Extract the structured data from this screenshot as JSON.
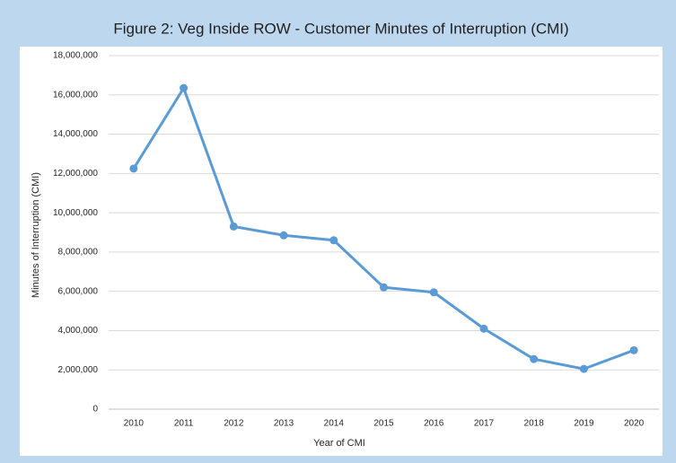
{
  "chart_data": {
    "type": "line",
    "title": "Figure 2: Veg Inside ROW - Customer Minutes of Interruption (CMI)",
    "x_label": "Year of CMI",
    "y_label": "Minutes of Interruption (CMI)",
    "categories": [
      "2010",
      "2011",
      "2012",
      "2013",
      "2014",
      "2015",
      "2016",
      "2017",
      "2018",
      "2019",
      "2020"
    ],
    "series": [
      {
        "name": "CMI",
        "color": "#5b9bd5",
        "values": [
          12250000,
          16350000,
          9300000,
          8850000,
          8600000,
          6200000,
          5950000,
          4100000,
          2550000,
          2050000,
          3000000
        ]
      }
    ],
    "ylim": [
      0,
      18000000
    ],
    "yticks": [
      0,
      {
        "value": 2000000,
        "label": "2,000,000"
      },
      {
        "value": 4000000,
        "label": "4,000,000"
      },
      {
        "value": 6000000,
        "label": "6,000,000"
      },
      {
        "value": 8000000,
        "label": "8,000,000"
      },
      {
        "value": 10000000,
        "label": "10,000,000"
      },
      {
        "value": 12000000,
        "label": "12,000,000"
      },
      {
        "value": 14000000,
        "label": "14,000,000"
      },
      {
        "value": 16000000,
        "label": "16,000,000"
      },
      {
        "value": 18000000,
        "label": "18,000,000"
      }
    ],
    "grid": true
  }
}
